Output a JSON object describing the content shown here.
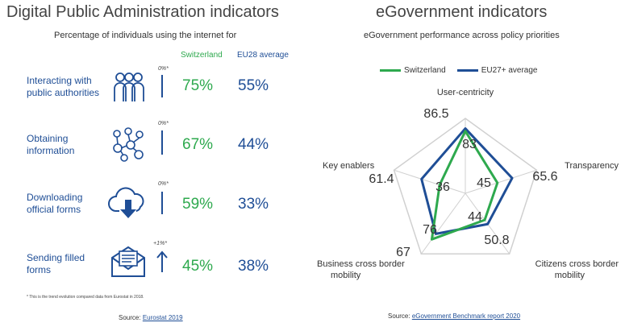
{
  "left": {
    "title": "Digital Public Administration indicators",
    "subtitle": "Percentage of individuals using the internet for",
    "col_switzerland": "Switzerland",
    "col_eu": "EU28 average",
    "rows": [
      {
        "label_line1": "Interacting with",
        "label_line2": "public authorities",
        "trend": "0%*",
        "switzerland": "75%",
        "eu": "55%",
        "icon": "people-group-icon",
        "arrow": "none"
      },
      {
        "label_line1": "Obtaining",
        "label_line2": "information",
        "trend": "0%*",
        "switzerland": "67%",
        "eu": "44%",
        "icon": "network-people-icon",
        "arrow": "none"
      },
      {
        "label_line1": "Downloading",
        "label_line2": "official forms",
        "trend": "0%*",
        "switzerland": "59%",
        "eu": "33%",
        "icon": "cloud-download-icon",
        "arrow": "none"
      },
      {
        "label_line1": "Sending filled",
        "label_line2": "forms",
        "trend": "+1%*",
        "switzerland": "45%",
        "eu": "38%",
        "icon": "envelope-document-icon",
        "arrow": "up"
      }
    ],
    "footnote": "* This is the trend evolution compared data from Eurostat in 2018.",
    "source_prefix": "Source:",
    "source_link": "Eurostat 2019"
  },
  "right": {
    "title": "eGovernment indicators",
    "subtitle": "eGovernment performance across policy priorities",
    "source_prefix": "Source:",
    "source_link": "eGovernment Benchmark report 2020"
  },
  "colors": {
    "switzerland": "#2ea94e",
    "eu": "#1f4e96",
    "grid": "#d0d0d0"
  },
  "chart_data": {
    "type": "radar",
    "axes": [
      "User-centricity",
      "Transparency",
      "Citizens cross border mobility",
      "Business cross border mobility",
      "Key enablers"
    ],
    "axis_labels": [
      {
        "line1": "User-centricity",
        "line2": ""
      },
      {
        "line1": "Transparency",
        "line2": ""
      },
      {
        "line1": "Citizens cross border",
        "line2": "mobility"
      },
      {
        "line1": "Business cross border",
        "line2": "mobility"
      },
      {
        "line1": "Key enablers",
        "line2": ""
      }
    ],
    "range": [
      0,
      100
    ],
    "series": [
      {
        "name": "Switzerland",
        "values": [
          83,
          45,
          44,
          76,
          36
        ],
        "labels": [
          "83",
          "45",
          "44",
          "76",
          "36"
        ]
      },
      {
        "name": "EU27+ average",
        "values": [
          86.5,
          65.6,
          50.8,
          67,
          61.4
        ],
        "labels": [
          "86.5",
          "65.6",
          "50.8",
          "67",
          "61.4"
        ]
      }
    ]
  }
}
